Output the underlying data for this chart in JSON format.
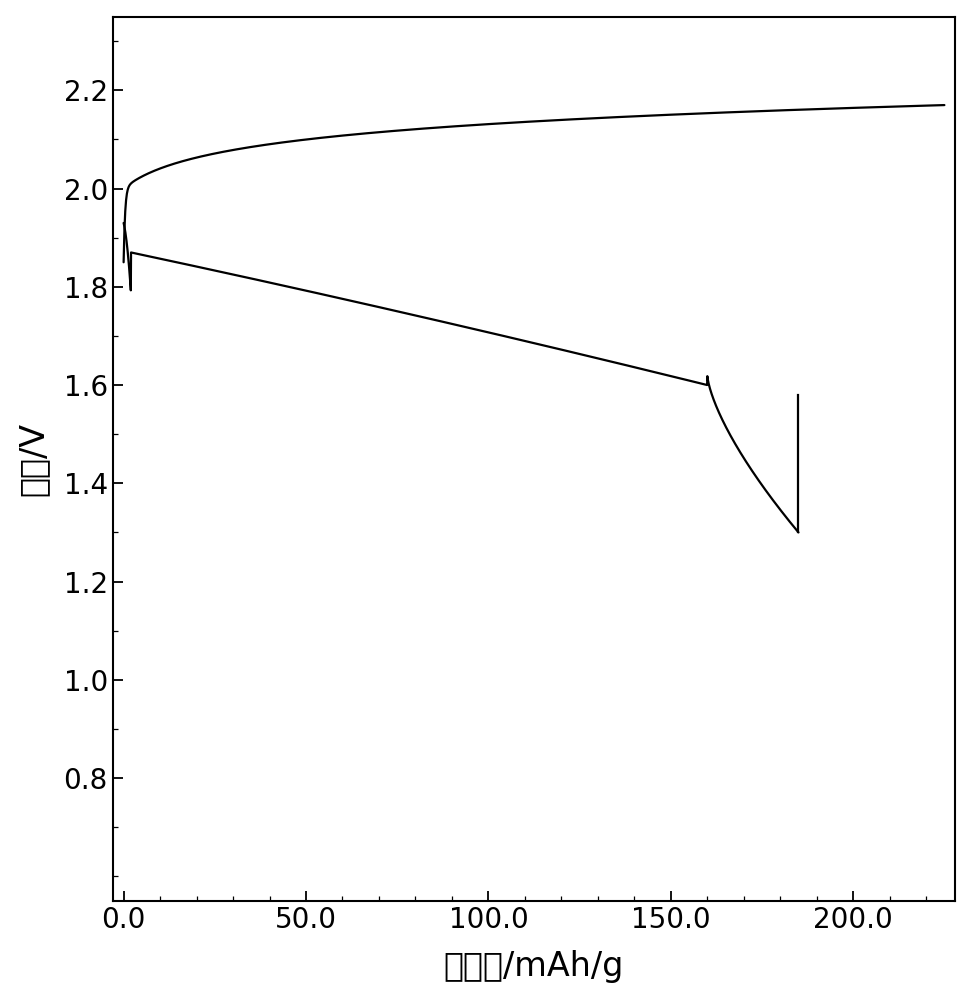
{
  "title": "",
  "xlabel": "比容量/mAh/g",
  "ylabel": "电压/V",
  "xlim": [
    -3,
    228
  ],
  "ylim": [
    0.55,
    2.35
  ],
  "xticks": [
    0.0,
    50.0,
    100.0,
    150.0,
    200.0
  ],
  "yticks": [
    0.8,
    1.0,
    1.2,
    1.4,
    1.6,
    1.8,
    2.0,
    2.2
  ],
  "background_color": "#ffffff",
  "line_color": "#000000",
  "line_width": 1.6,
  "font_size_label": 24,
  "font_size_tick": 20
}
